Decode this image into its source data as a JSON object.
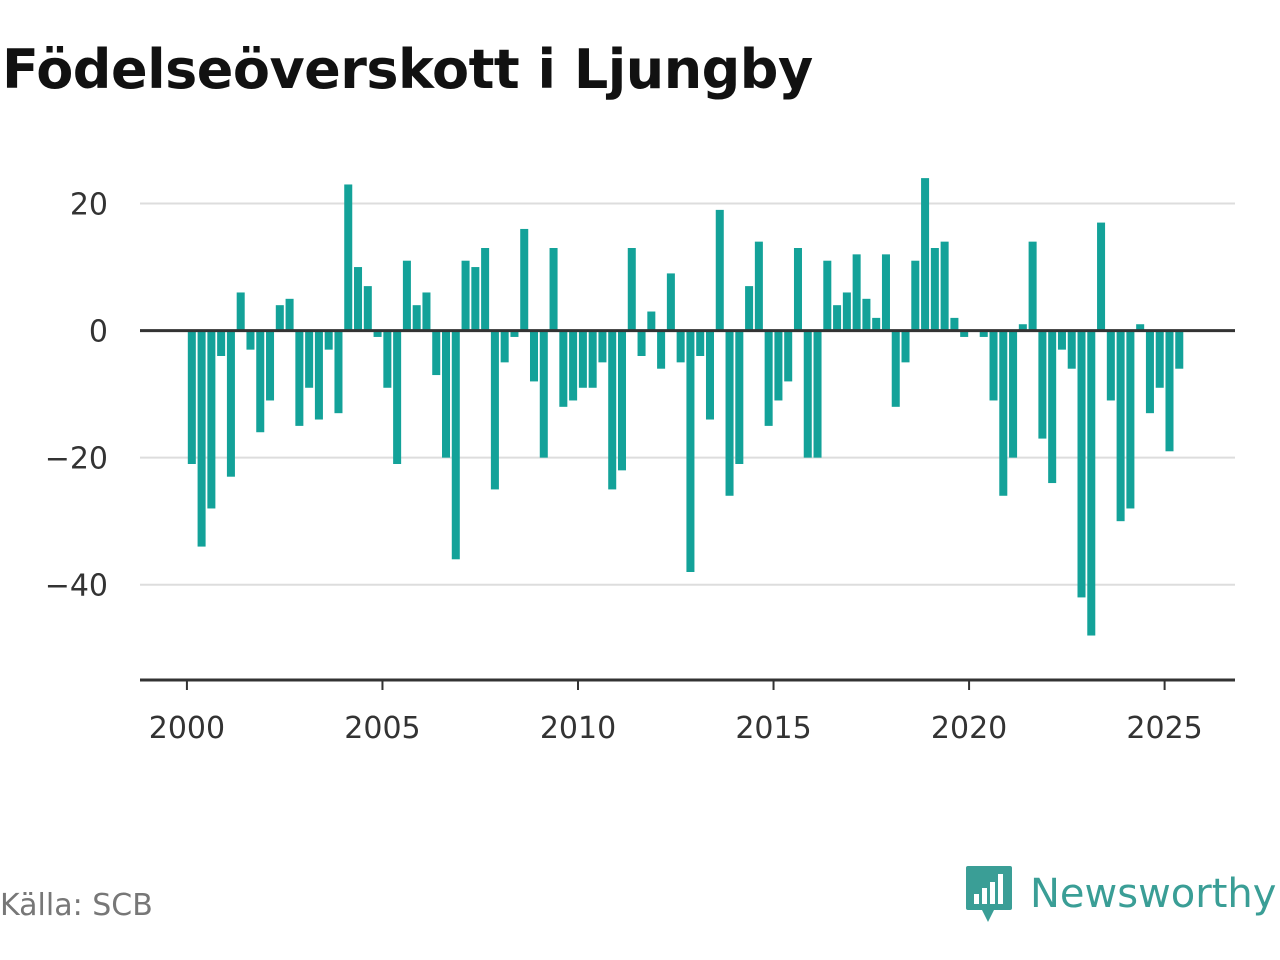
{
  "title": "Födelseöverskott i Ljungby",
  "source": "Källa: SCB",
  "logo": {
    "name": "Newsworthy",
    "icon": "bar-chart-speech-bubble-icon",
    "color": "#3a9e96"
  },
  "colors": {
    "bar": "#13a299",
    "grid": "#dddddd",
    "zero": "#333333",
    "axis": "#333333"
  },
  "chart_data": {
    "type": "bar",
    "title": "Födelseöverskott i Ljungby",
    "xlabel": "",
    "ylabel": "",
    "x_ticks": [
      "2000",
      "2005",
      "2010",
      "2015",
      "2020",
      "2025"
    ],
    "y_ticks": [
      "20",
      "0",
      "−20",
      "−40"
    ],
    "y_tick_values": [
      20,
      0,
      -20,
      -40
    ],
    "xlim": [
      1998.8,
      2026.8
    ],
    "ylim": [
      -55,
      30
    ],
    "grid": true,
    "x_start": 2000.125,
    "x_step": 0.25,
    "values": [
      -21,
      -34,
      -28,
      -4,
      -23,
      6,
      -3,
      -16,
      -11,
      4,
      5,
      -15,
      -9,
      -14,
      -3,
      -13,
      23,
      10,
      7,
      -1,
      -9,
      -21,
      11,
      4,
      6,
      -7,
      -20,
      -36,
      11,
      10,
      13,
      -25,
      -5,
      -1,
      16,
      -8,
      -20,
      13,
      -12,
      -11,
      -9,
      -9,
      -5,
      -25,
      -22,
      13,
      -4,
      3,
      -6,
      9,
      -5,
      -38,
      -4,
      -14,
      19,
      -26,
      -21,
      7,
      14,
      -15,
      -11,
      -8,
      13,
      -20,
      -20,
      11,
      4,
      6,
      12,
      5,
      2,
      12,
      -12,
      -5,
      11,
      24,
      13,
      14,
      2,
      -1,
      0,
      -1,
      -11,
      -26,
      -20,
      1,
      14,
      -17,
      -24,
      -3,
      -6,
      -42,
      -48,
      17,
      -11,
      -30,
      -28,
      1,
      -13,
      -9,
      -19,
      -6
    ]
  }
}
